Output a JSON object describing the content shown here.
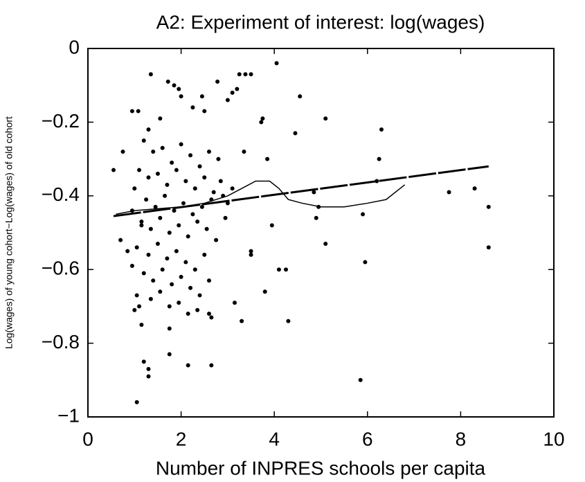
{
  "chart_data": {
    "type": "scatter",
    "title": "A2: Experiment of interest: log(wages)",
    "xlabel": "Number of INPRES schools per capita",
    "ylabel": "Log(wages) of young cohort−Log(wages) of old cohort",
    "xlim": [
      0,
      10
    ],
    "ylim": [
      -1,
      0
    ],
    "xticks": [
      0,
      2,
      4,
      6,
      8,
      10
    ],
    "yticks": [
      {
        "value": -1,
        "label": "−1"
      },
      {
        "value": -0.8,
        "label": "−0.8"
      },
      {
        "value": -0.6,
        "label": "−0.6"
      },
      {
        "value": -0.4,
        "label": "−0.4"
      },
      {
        "value": -0.2,
        "label": "−0.2"
      },
      0
    ],
    "color": "#000000",
    "points": {
      "x": [
        1.35,
        1.72,
        1.85,
        1.95,
        2.0,
        2.78,
        3.38,
        3.5,
        3.25,
        4.05,
        3.1,
        3.2,
        4.55,
        1.08,
        0.95,
        2.45,
        3.0,
        3.72,
        3.75,
        5.1,
        6.3,
        4.45,
        2.5,
        2.25,
        1.55,
        1.3,
        0.55,
        0.75,
        3.35,
        3.85,
        6.25,
        6.2,
        7.75,
        8.3,
        8.6,
        8.6,
        4.95,
        4.9,
        5.1,
        5.9,
        5.95,
        4.85,
        3.95,
        3.5,
        3.5,
        4.1,
        4.25,
        3.8,
        3.15,
        3.3,
        4.3,
        5.85,
        1.05,
        1.2,
        1.3,
        1.3,
        2.15,
        2.65,
        1.75,
        1.15,
        1.75,
        2.6,
        2.65,
        0.7,
        0.85,
        0.95,
        1.05,
        1.1,
        1.0,
        1.2,
        1.4,
        1.6,
        1.8,
        2.0,
        2.2,
        2.4,
        2.6,
        2.8,
        1.1,
        1.3,
        1.5,
        1.7,
        1.9,
        2.1,
        2.3,
        2.5,
        2.7,
        2.9,
        1.0,
        1.25,
        1.45,
        1.65,
        1.85,
        2.05,
        2.25,
        2.45,
        2.65,
        1.15,
        1.35,
        1.55,
        1.75,
        1.95,
        2.15,
        2.35,
        2.55,
        2.75,
        1.05,
        1.3,
        1.5,
        1.7,
        1.9,
        2.1,
        2.3,
        2.5,
        1.2,
        1.4,
        1.6,
        1.8,
        2.0,
        2.2,
        2.4,
        2.6,
        1.35,
        1.55,
        1.75,
        1.95,
        2.15,
        2.35,
        0.95,
        1.15,
        2.85,
        3.0,
        3.1,
        2.95
      ],
      "y": [
        -0.07,
        -0.09,
        -0.1,
        -0.11,
        -0.13,
        -0.09,
        -0.07,
        -0.07,
        -0.07,
        -0.04,
        -0.12,
        -0.11,
        -0.13,
        -0.17,
        -0.17,
        -0.13,
        -0.14,
        -0.2,
        -0.19,
        -0.19,
        -0.22,
        -0.23,
        -0.17,
        -0.16,
        -0.19,
        -0.22,
        -0.33,
        -0.28,
        -0.28,
        -0.3,
        -0.3,
        -0.36,
        -0.39,
        -0.38,
        -0.43,
        -0.54,
        -0.43,
        -0.46,
        -0.53,
        -0.45,
        -0.58,
        -0.39,
        -0.48,
        -0.55,
        -0.56,
        -0.6,
        -0.6,
        -0.66,
        -0.69,
        -0.74,
        -0.74,
        -0.9,
        -0.96,
        -0.85,
        -0.87,
        -0.89,
        -0.86,
        -0.86,
        -0.83,
        -0.75,
        -0.76,
        -0.72,
        -0.73,
        -0.52,
        -0.55,
        -0.59,
        -0.67,
        -0.7,
        -0.71,
        -0.25,
        -0.28,
        -0.27,
        -0.31,
        -0.26,
        -0.29,
        -0.32,
        -0.28,
        -0.3,
        -0.33,
        -0.35,
        -0.34,
        -0.37,
        -0.33,
        -0.36,
        -0.38,
        -0.35,
        -0.39,
        -0.4,
        -0.38,
        -0.41,
        -0.43,
        -0.4,
        -0.44,
        -0.42,
        -0.45,
        -0.43,
        -0.41,
        -0.47,
        -0.49,
        -0.46,
        -0.5,
        -0.48,
        -0.51,
        -0.47,
        -0.49,
        -0.52,
        -0.54,
        -0.56,
        -0.53,
        -0.57,
        -0.55,
        -0.58,
        -0.6,
        -0.56,
        -0.61,
        -0.63,
        -0.6,
        -0.64,
        -0.62,
        -0.65,
        -0.67,
        -0.63,
        -0.68,
        -0.66,
        -0.7,
        -0.69,
        -0.72,
        -0.71,
        -0.44,
        -0.48,
        -0.36,
        -0.42,
        -0.38,
        -0.46
      ]
    },
    "fit": {
      "x": [
        0.55,
        8.6
      ],
      "y": [
        -0.455,
        -0.32
      ]
    },
    "smooth": {
      "x": [
        0.6,
        1,
        1.5,
        2,
        2.5,
        3,
        3.3,
        3.6,
        3.9,
        4.1,
        4.3,
        4.6,
        5,
        5.5,
        6,
        6.4,
        6.8
      ],
      "y": [
        -0.45,
        -0.44,
        -0.435,
        -0.43,
        -0.42,
        -0.4,
        -0.38,
        -0.36,
        -0.36,
        -0.38,
        -0.41,
        -0.42,
        -0.43,
        -0.43,
        -0.42,
        -0.41,
        -0.37
      ]
    }
  }
}
